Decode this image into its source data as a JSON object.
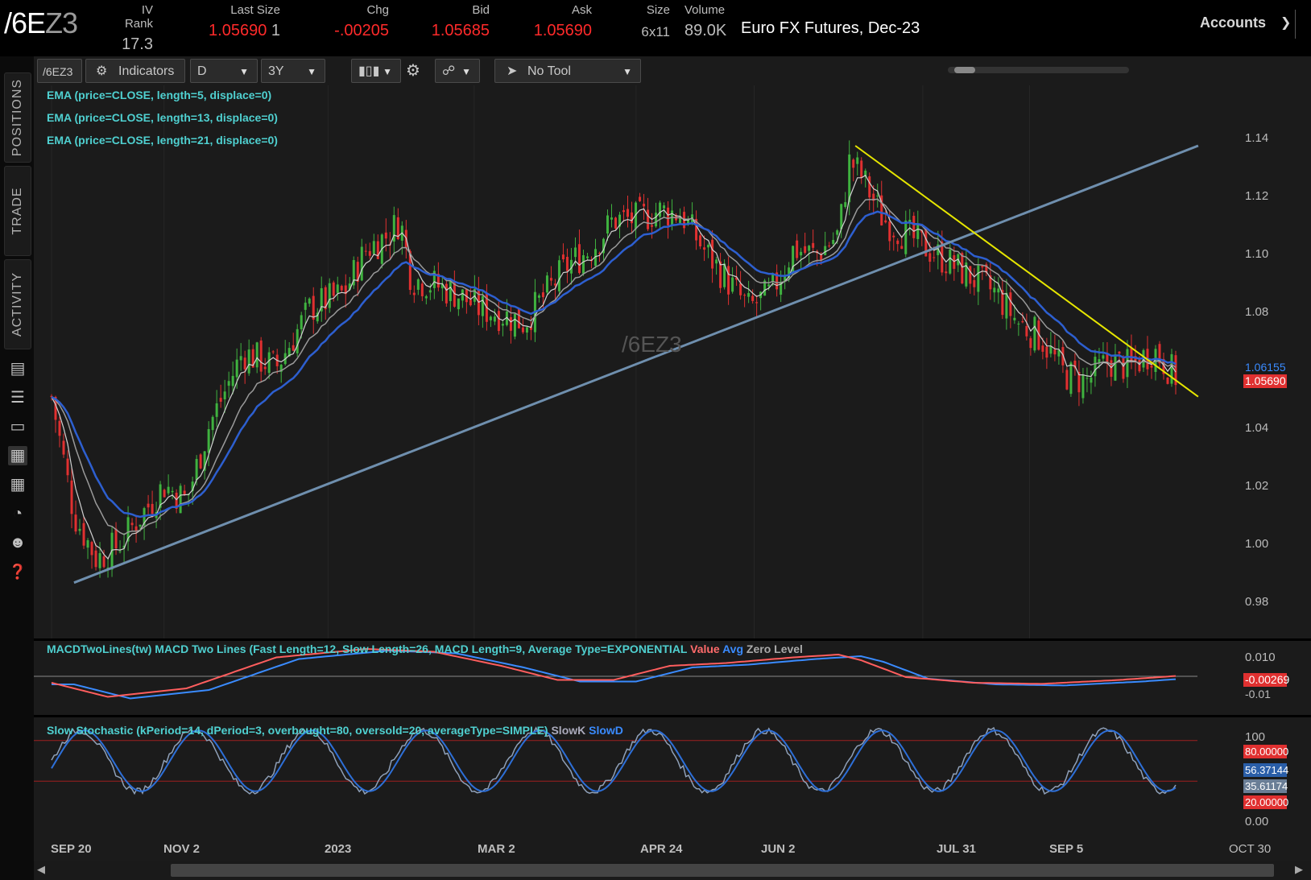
{
  "header": {
    "symbol_main": "/6E",
    "symbol_dim": "Z3",
    "iv_rank": {
      "label": "IV Rank",
      "value": "17.3"
    },
    "last_size": {
      "label": "Last Size",
      "value": "1.05690",
      "size": "1"
    },
    "chg": {
      "label": "Chg",
      "value": "-.00205"
    },
    "bid": {
      "label": "Bid",
      "value": "1.05685"
    },
    "ask": {
      "label": "Ask",
      "value": "1.05690"
    },
    "size": {
      "label": "Size",
      "value": "6x11"
    },
    "volume": {
      "label": "Volume",
      "value": "89.0K"
    },
    "description": "Euro FX Futures, Dec-23",
    "accounts": "Accounts",
    "colors": {
      "down": "#ff2a2a",
      "neutral": "#bdbdbd"
    }
  },
  "sidebar": {
    "tabs": [
      "POSITIONS",
      "TRADE",
      "ACTIVITY"
    ],
    "icons": [
      "news-icon",
      "list-icon",
      "tv-icon",
      "chart-icon",
      "grid-icon",
      "gauge-icon",
      "people-icon",
      "help-icon"
    ]
  },
  "toolbar": {
    "symbol": "/6EZ3",
    "indicators": "Indicators",
    "aggregation": "D",
    "timeframe": "3Y",
    "drawing": "No Tool"
  },
  "studies": {
    "ema1": "EMA (price=CLOSE, length=5, displace=0)",
    "ema2": "EMA (price=CLOSE, length=13, displace=0)",
    "ema3": "EMA (price=CLOSE, length=21, displace=0)",
    "macd_title": "MACDTwoLines(tw) MACD Two Lines (Fast Length=12, Slow Length=26, MACD Length=9, Average Type=EXPONENTIAL",
    "macd_value": "Value",
    "macd_avg": "Avg",
    "macd_zero": "Zero Level",
    "stoch_title": "Slow Stochastic (kPeriod=14, dPeriod=3, overbought=80, oversold=20, averageType=SIMPLE)",
    "stoch_k": "SlowK",
    "stoch_d": "SlowD"
  },
  "watermark": "/6EZ3",
  "price_axis": [
    "1.14",
    "1.12",
    "1.10",
    "1.08",
    "1.04",
    "1.02",
    "1.00",
    "0.98"
  ],
  "price_tags": {
    "avg": "1.06155",
    "last": "1.05690"
  },
  "macd_axis": [
    "0.010",
    "-0.01"
  ],
  "macd_tag": "-0.00269",
  "stoch_axis": [
    "100",
    "0.00"
  ],
  "stoch_tags": [
    "80.00000",
    "56.37144",
    "35.61174",
    "20.00000"
  ],
  "time_axis": [
    "SEP 20",
    "NOV 2",
    "2023",
    "MAR 2",
    "APR 24",
    "JUN 2",
    "JUL 31",
    "SEP 5",
    "OCT 30"
  ],
  "chart_data": {
    "type": "candlestick",
    "title": "/6EZ3",
    "ylim": [
      0.97,
      1.15
    ],
    "x_ticks": [
      "SEP 20",
      "NOV 2",
      "2023",
      "MAR 2",
      "APR 24",
      "JUN 2",
      "JUL 31",
      "SEP 5",
      "OCT 30"
    ],
    "close_path": [
      [
        0,
        1.05
      ],
      [
        0.02,
        1.01
      ],
      [
        0.04,
        0.995
      ],
      [
        0.06,
        1.0
      ],
      [
        0.08,
        1.01
      ],
      [
        0.1,
        1.02
      ],
      [
        0.12,
        1.015
      ],
      [
        0.14,
        1.04
      ],
      [
        0.17,
        1.065
      ],
      [
        0.2,
        1.06
      ],
      [
        0.23,
        1.08
      ],
      [
        0.26,
        1.085
      ],
      [
        0.28,
        1.1
      ],
      [
        0.3,
        1.105
      ],
      [
        0.31,
        1.11
      ],
      [
        0.32,
        1.09
      ],
      [
        0.34,
        1.088
      ],
      [
        0.36,
        1.085
      ],
      [
        0.38,
        1.08
      ],
      [
        0.4,
        1.078
      ],
      [
        0.42,
        1.075
      ],
      [
        0.44,
        1.085
      ],
      [
        0.46,
        1.095
      ],
      [
        0.48,
        1.1
      ],
      [
        0.5,
        1.11
      ],
      [
        0.52,
        1.11
      ],
      [
        0.54,
        1.113
      ],
      [
        0.56,
        1.112
      ],
      [
        0.58,
        1.1
      ],
      [
        0.6,
        1.09
      ],
      [
        0.62,
        1.08
      ],
      [
        0.64,
        1.085
      ],
      [
        0.66,
        1.1
      ],
      [
        0.68,
        1.098
      ],
      [
        0.7,
        1.105
      ],
      [
        0.71,
        1.13
      ],
      [
        0.72,
        1.125
      ],
      [
        0.74,
        1.11
      ],
      [
        0.76,
        1.105
      ],
      [
        0.78,
        1.1
      ],
      [
        0.8,
        1.095
      ],
      [
        0.82,
        1.09
      ],
      [
        0.84,
        1.085
      ],
      [
        0.86,
        1.075
      ],
      [
        0.88,
        1.07
      ],
      [
        0.9,
        1.058
      ],
      [
        0.92,
        1.055
      ],
      [
        0.94,
        1.062
      ],
      [
        0.96,
        1.06
      ],
      [
        0.98,
        1.066
      ],
      [
        1.0,
        1.057
      ]
    ],
    "trendlines": [
      {
        "name": "support",
        "color": "#6f8fae",
        "from": [
          0.02,
          0.987
        ],
        "to": [
          1.02,
          1.135
        ]
      },
      {
        "name": "resistance",
        "color": "#e6e600",
        "from": [
          0.715,
          1.135
        ],
        "to": [
          1.02,
          1.05
        ]
      }
    ]
  }
}
